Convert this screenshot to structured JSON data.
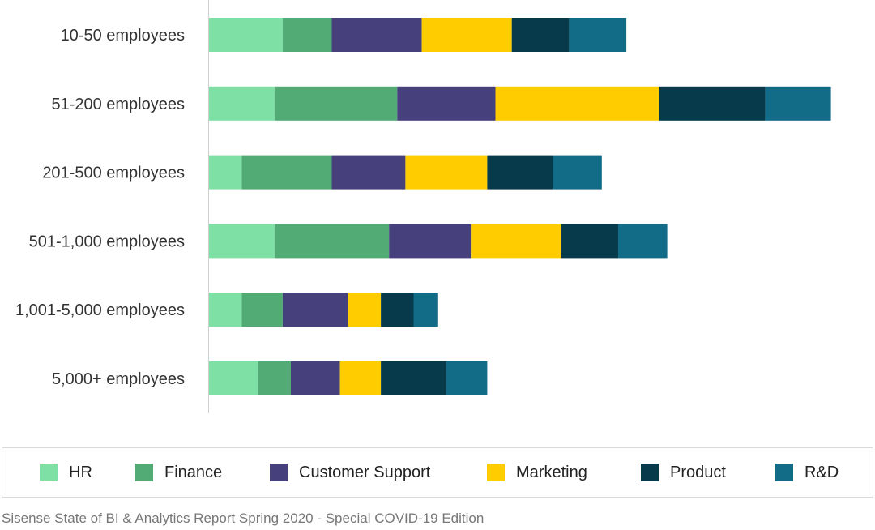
{
  "chart_data": {
    "type": "bar",
    "orientation": "horizontal",
    "stacked": true,
    "categories": [
      "10-50 employees",
      "51-200 employees",
      "201-500 employees",
      "501-1,000 employees",
      "1,001-5,000 employees",
      "5,000+ employees"
    ],
    "series": [
      {
        "name": "HR",
        "color": "#7fe0a6",
        "values": [
          9,
          8,
          4,
          8,
          4,
          6
        ]
      },
      {
        "name": "Finance",
        "color": "#52ab75",
        "values": [
          6,
          15,
          11,
          14,
          5,
          4
        ]
      },
      {
        "name": "Customer Support",
        "color": "#46407d",
        "values": [
          11,
          12,
          9,
          10,
          8,
          6
        ]
      },
      {
        "name": "Marketing",
        "color": "#ffcc00",
        "values": [
          11,
          20,
          10,
          11,
          4,
          5
        ]
      },
      {
        "name": "Product",
        "color": "#073b4c",
        "values": [
          7,
          13,
          8,
          7,
          4,
          8
        ]
      },
      {
        "name": "R&D",
        "color": "#126b87",
        "values": [
          7,
          8,
          6,
          6,
          3,
          5
        ]
      }
    ],
    "xlim": [
      0,
      80
    ],
    "grid": false,
    "legend_position": "bottom"
  },
  "caption": "Sisense State of BI & Analytics Report Spring 2020 - Special COVID-19 Edition"
}
